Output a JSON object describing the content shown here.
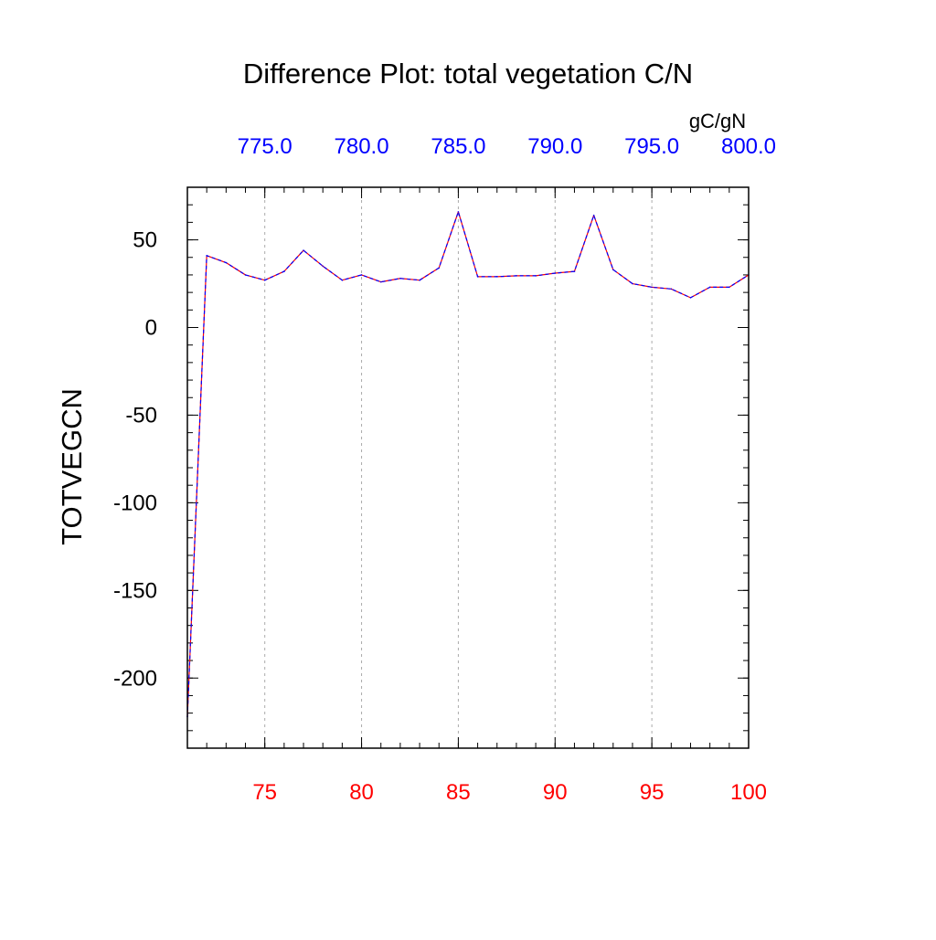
{
  "chart_data": {
    "type": "line",
    "title": "Difference Plot: total vegetation C/N",
    "ylabel": "TOTVEGCN",
    "units": "gC/gN",
    "grid": "vertical dashed at bottom x ticks",
    "xlim": [
      71,
      100
    ],
    "ylim": [
      -240,
      80
    ],
    "x_ticks": [
      {
        "value": 75,
        "label": "75"
      },
      {
        "value": 80,
        "label": "80"
      },
      {
        "value": 85,
        "label": "85"
      },
      {
        "value": 90,
        "label": "90"
      },
      {
        "value": 95,
        "label": "95"
      },
      {
        "value": 100,
        "label": "100"
      }
    ],
    "x_tick_color": "#ff0000",
    "top_ticks": [
      {
        "label": "775.0"
      },
      {
        "label": "780.0"
      },
      {
        "label": "785.0"
      },
      {
        "label": "790.0"
      },
      {
        "label": "795.0"
      },
      {
        "label": "800.0"
      }
    ],
    "top_tick_color": "#0000ff",
    "y_ticks": [
      {
        "value": 50,
        "label": "50"
      },
      {
        "value": 0,
        "label": "0"
      },
      {
        "value": -50,
        "label": "-50"
      },
      {
        "value": -100,
        "label": "-100"
      },
      {
        "value": -150,
        "label": "-150"
      },
      {
        "value": -200,
        "label": "-200"
      }
    ],
    "series": [
      {
        "colors": [
          "#ff0000",
          "#0000ff"
        ],
        "x": [
          71,
          72,
          73,
          74,
          75,
          76,
          77,
          78,
          79,
          80,
          81,
          82,
          83,
          84,
          85,
          86,
          87,
          88,
          89,
          90,
          91,
          92,
          93,
          94,
          95,
          96,
          97,
          98,
          99,
          100
        ],
        "y": [
          -222,
          41,
          37,
          30,
          27,
          32,
          44,
          35,
          27,
          30,
          26,
          28,
          27,
          34,
          66,
          29,
          29,
          29.5,
          29.5,
          31,
          32,
          64,
          33,
          25,
          23,
          22,
          17,
          23,
          23,
          30
        ]
      }
    ]
  }
}
